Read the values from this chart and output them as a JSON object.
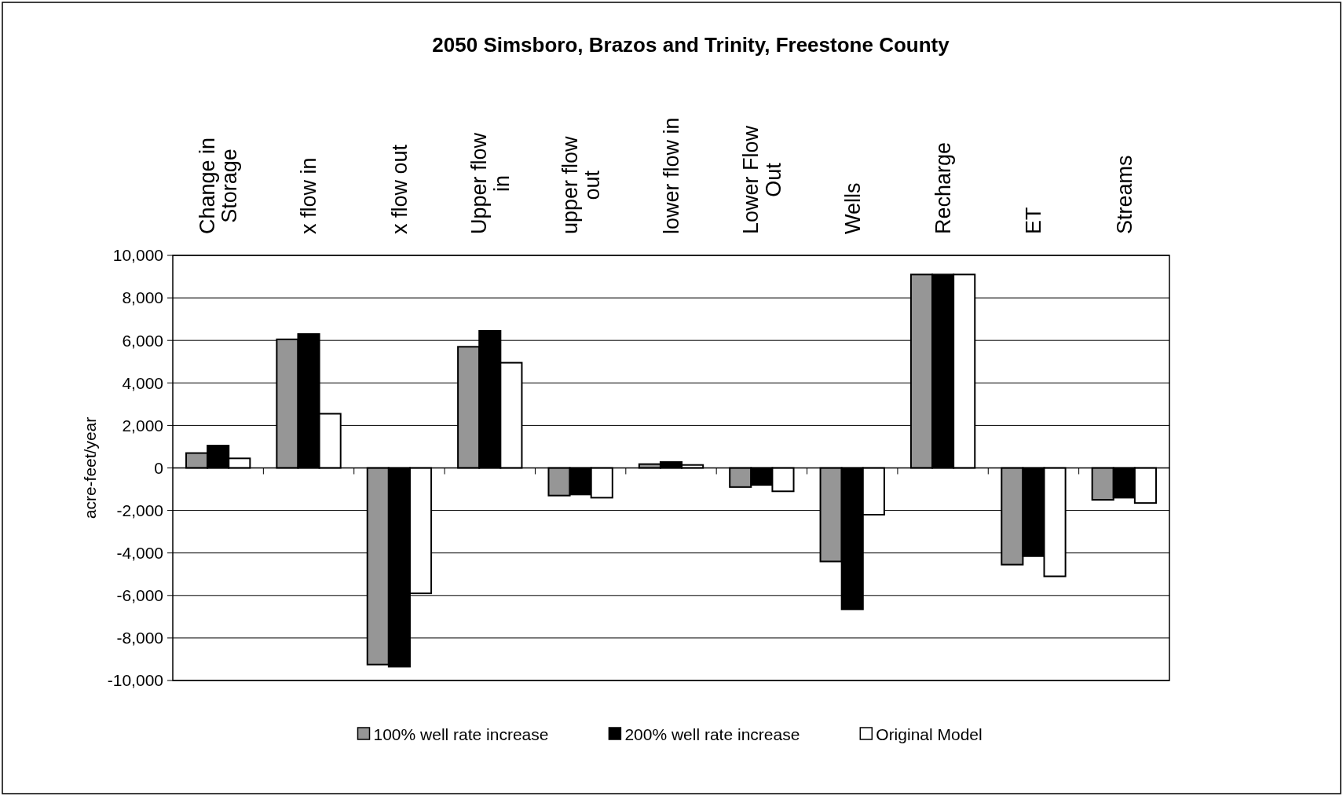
{
  "chart_data": {
    "type": "bar",
    "title": "2050 Simsboro, Brazos and Trinity, Freestone County",
    "ylabel": "acre-feet/year",
    "categories": [
      "Change in\nStorage",
      "x flow in",
      "x flow out",
      "Upper flow\nin",
      "upper flow\nout",
      "lower flow in",
      "Lower Flow\nOut",
      "Wells",
      "Recharge",
      "ET",
      "Streams"
    ],
    "series": [
      {
        "name": "100% well rate increase",
        "color": "#969696",
        "values": [
          700,
          6050,
          -9250,
          5700,
          -1300,
          180,
          -900,
          -4400,
          9100,
          -4550,
          -1500
        ]
      },
      {
        "name": "200% well rate increase",
        "color": "#000000",
        "values": [
          1050,
          6300,
          -9350,
          6450,
          -1250,
          280,
          -800,
          -6650,
          9100,
          -4150,
          -1400
        ]
      },
      {
        "name": "Original Model",
        "color": "#ffffff",
        "values": [
          450,
          2550,
          -5900,
          4950,
          -1400,
          140,
          -1100,
          -2200,
          9100,
          -5100,
          -1650
        ]
      }
    ],
    "ylim": [
      -10000,
      10000
    ],
    "yticks": [
      {
        "value": -10000,
        "label": "-10,000"
      },
      {
        "value": -8000,
        "label": "-8,000"
      },
      {
        "value": -6000,
        "label": "-6,000"
      },
      {
        "value": -4000,
        "label": "-4,000"
      },
      {
        "value": -2000,
        "label": "-2,000"
      },
      0,
      {
        "value": 2000,
        "label": "2,000"
      },
      {
        "value": 4000,
        "label": "4,000"
      },
      {
        "value": 6000,
        "label": "6,000"
      },
      {
        "value": 8000,
        "label": "8,000"
      },
      {
        "value": 10000,
        "label": "10,000"
      }
    ],
    "grid": "y",
    "legend": "bottom"
  }
}
